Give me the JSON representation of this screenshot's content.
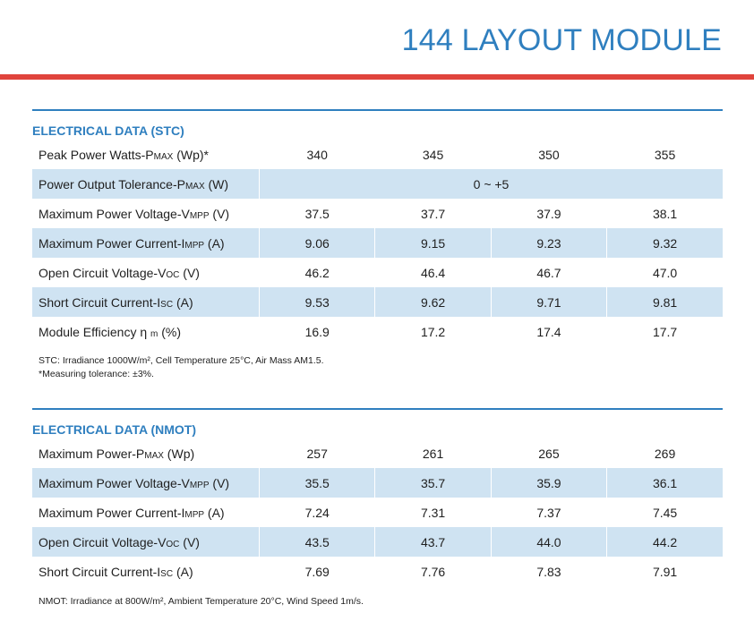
{
  "page_title": "144 LAYOUT MODULE",
  "stc": {
    "title": "ELECTRICAL DATA (STC)",
    "rows": [
      {
        "pre": "Peak Power Watts-P",
        "sub": "MAX",
        "post": " (Wp)*",
        "values": [
          "340",
          "345",
          "350",
          "355"
        ]
      },
      {
        "pre": "Power Output Tolerance-P",
        "sub": "MAX",
        "post": " (W)",
        "span_value": "0 ~ +5"
      },
      {
        "pre": "Maximum Power Voltage-V",
        "sub": "MPP",
        "post": " (V)",
        "values": [
          "37.5",
          "37.7",
          "37.9",
          "38.1"
        ]
      },
      {
        "pre": "Maximum Power Current-I",
        "sub": "MPP",
        "post": " (A)",
        "values": [
          "9.06",
          "9.15",
          "9.23",
          "9.32"
        ]
      },
      {
        "pre": "Open Circuit Voltage-V",
        "sub": "OC",
        "post": " (V)",
        "values": [
          "46.2",
          "46.4",
          "46.7",
          "47.0"
        ]
      },
      {
        "pre": "Short Circuit Current-I",
        "sub": "SC",
        "post": " (A)",
        "values": [
          "9.53",
          "9.62",
          "9.71",
          "9.81"
        ]
      },
      {
        "pre": "Module Efficiency  η ",
        "sub": "m",
        "post": " (%)",
        "values": [
          "16.9",
          "17.2",
          "17.4",
          "17.7"
        ]
      }
    ],
    "notes": [
      "STC: Irradiance 1000W/m², Cell Temperature 25°C, Air Mass AM1.5.",
      "*Measuring tolerance: ±3%."
    ]
  },
  "nmot": {
    "title": "ELECTRICAL DATA (NMOT)",
    "rows": [
      {
        "pre": "Maximum Power-P",
        "sub": "MAX",
        "post": " (Wp)",
        "values": [
          "257",
          "261",
          "265",
          "269"
        ]
      },
      {
        "pre": "Maximum Power Voltage-V",
        "sub": "MPP",
        "post": " (V)",
        "values": [
          "35.5",
          "35.7",
          "35.9",
          "36.1"
        ]
      },
      {
        "pre": "Maximum Power Current-I",
        "sub": "MPP",
        "post": " (A)",
        "values": [
          "7.24",
          "7.31",
          "7.37",
          "7.45"
        ]
      },
      {
        "pre": "Open Circuit Voltage-V",
        "sub": "OC",
        "post": " (V)",
        "values": [
          "43.5",
          "43.7",
          "44.0",
          "44.2"
        ]
      },
      {
        "pre": "Short Circuit Current-I",
        "sub": "SC",
        "post": " (A)",
        "values": [
          "7.69",
          "7.76",
          "7.83",
          "7.91"
        ]
      }
    ],
    "notes": [
      "NMOT: Irradiance at 800W/m², Ambient Temperature 20°C, Wind Speed 1m/s."
    ]
  }
}
